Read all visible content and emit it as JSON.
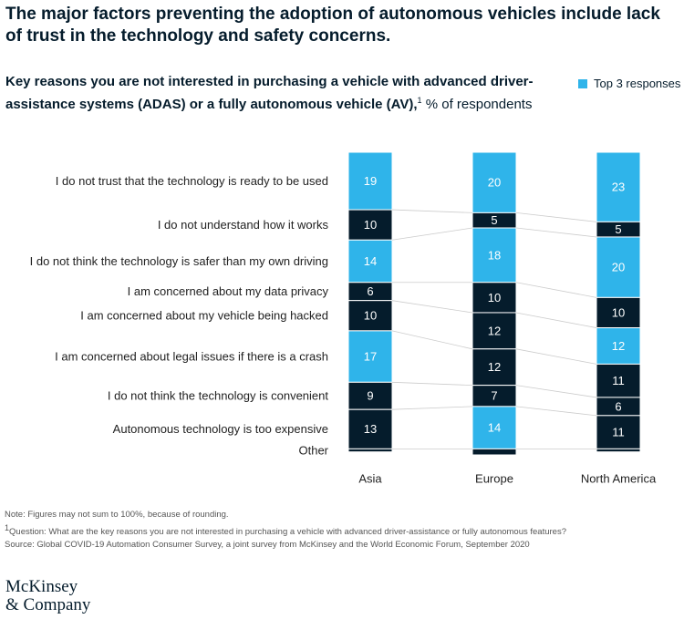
{
  "chart_data": {
    "type": "stacked_column_100",
    "title": "The major factors preventing the adoption of autonomous vehicles include lack of trust in the technology and safety concerns.",
    "subtitle": "Key reasons you are not interested in purchasing a vehicle with advanced driver-assistance systems (ADAS) or a fully autonomous vehicle (AV),",
    "subtitle_marker": "1",
    "unit": "% of respondents",
    "legend": {
      "label": "Top 3 responses",
      "color": "#2fb4ea"
    },
    "categories": [
      "Asia",
      "Europe",
      "North America"
    ],
    "ylim": [
      0,
      100
    ],
    "series": [
      {
        "name": "I do not trust that the technology is ready to be used",
        "values": [
          19,
          20,
          23
        ],
        "colors": [
          "#2fb4ea",
          "#2fb4ea",
          "#2fb4ea"
        ]
      },
      {
        "name": "I do not understand how it works",
        "values": [
          10,
          5,
          5
        ],
        "colors": [
          "#051c2c",
          "#051c2c",
          "#051c2c"
        ]
      },
      {
        "name": "I do not think the technology is safer than my own driving",
        "values": [
          14,
          18,
          20
        ],
        "colors": [
          "#2fb4ea",
          "#2fb4ea",
          "#2fb4ea"
        ]
      },
      {
        "name": "I am concerned about my data privacy",
        "values": [
          6,
          10,
          10
        ],
        "colors": [
          "#051c2c",
          "#051c2c",
          "#051c2c"
        ]
      },
      {
        "name": "I am concerned about my vehicle being hacked",
        "values": [
          10,
          12,
          12
        ],
        "colors": [
          "#051c2c",
          "#051c2c",
          "#2fb4ea"
        ]
      },
      {
        "name": "I am concerned about legal issues if there is a crash",
        "values": [
          17,
          12,
          11
        ],
        "colors": [
          "#2fb4ea",
          "#051c2c",
          "#051c2c"
        ]
      },
      {
        "name": "I do not think the technology is convenient",
        "values": [
          9,
          7,
          6
        ],
        "colors": [
          "#051c2c",
          "#051c2c",
          "#051c2c"
        ]
      },
      {
        "name": "Autonomous technology is too expensive",
        "values": [
          13,
          14,
          11
        ],
        "colors": [
          "#051c2c",
          "#2fb4ea",
          "#051c2c"
        ]
      },
      {
        "name": "Other",
        "values": [
          1,
          2,
          1
        ],
        "colors": [
          "#051c2c",
          "#051c2c",
          "#051c2c"
        ]
      }
    ]
  },
  "notes": {
    "note": "Note: Figures may not sum to 100%, because of rounding.",
    "question_marker": "1",
    "question": "Question: What are the key reasons you are not interested in purchasing a vehicle with advanced driver-assistance or fully autonomous features?",
    "source": "Source: Global COVID-19 Automation Consumer Survey, a joint survey from McKinsey and the World Economic Forum, September 2020"
  },
  "logo": {
    "line1": "McKinsey",
    "line2": "& Company"
  }
}
